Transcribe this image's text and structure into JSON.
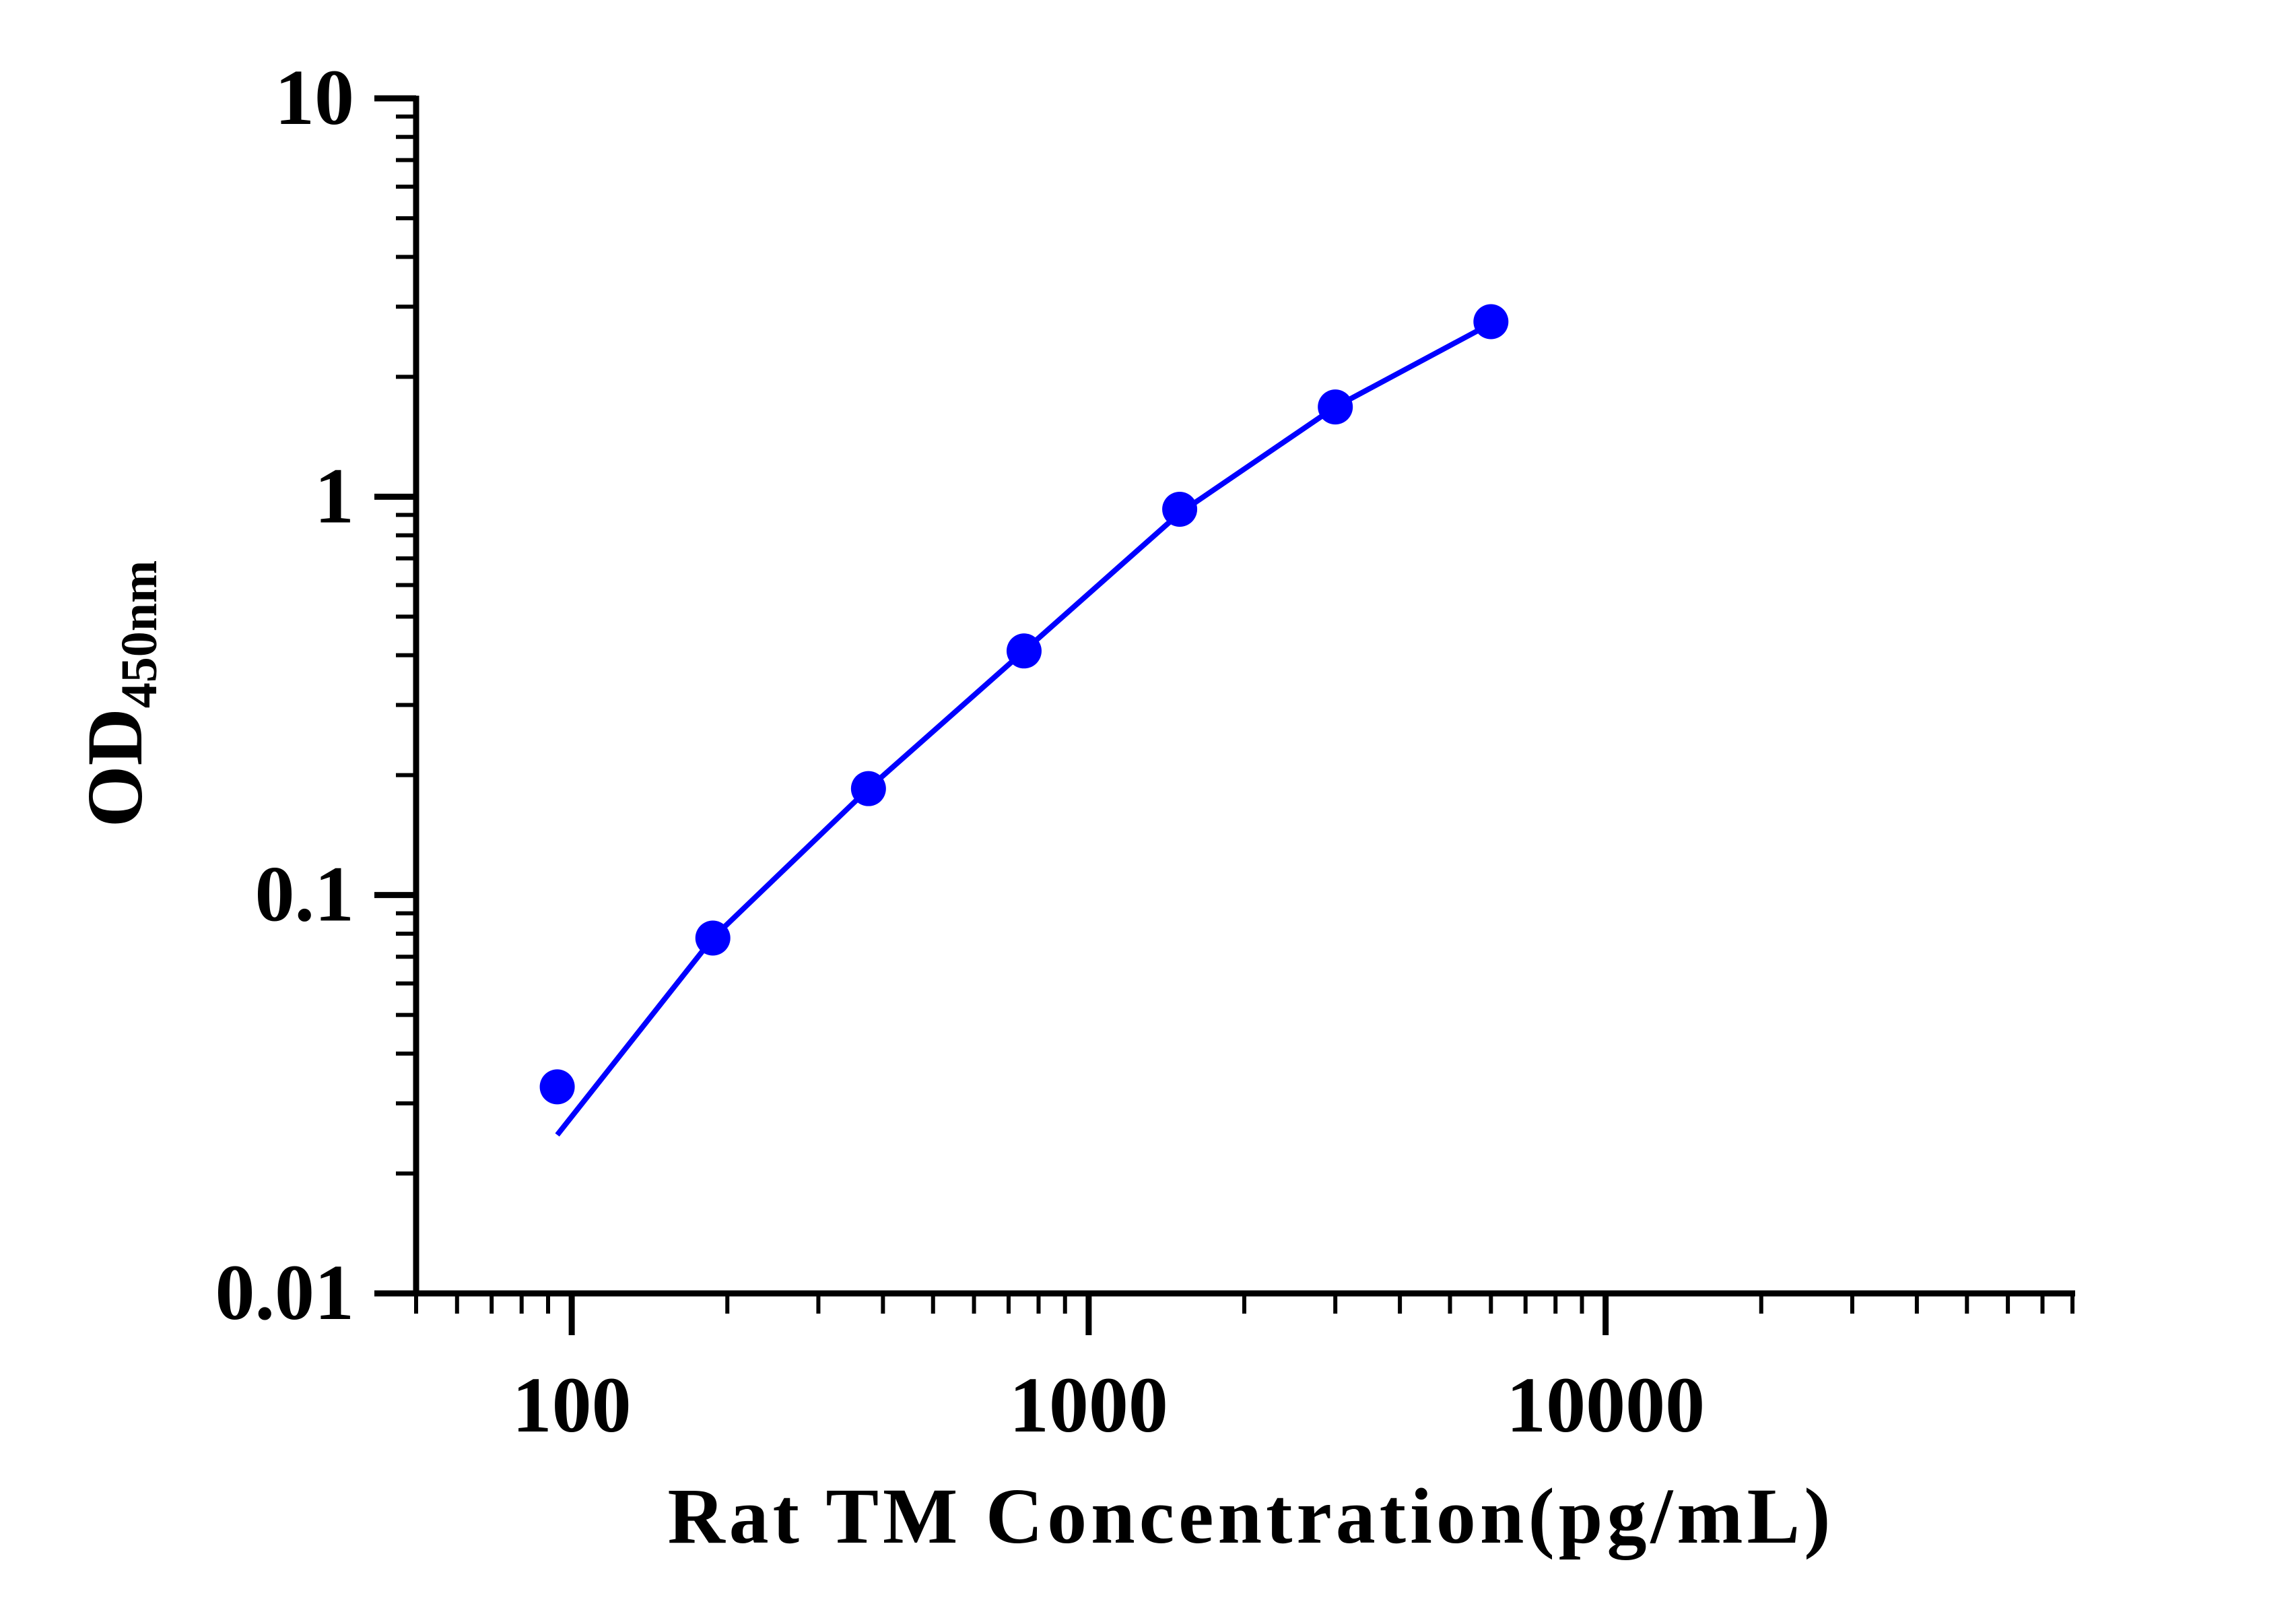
{
  "chart_data": {
    "type": "scatter",
    "xlabel": "Rat TM Concentration(pg/mL)",
    "ylabel": "OD",
    "ylabel_subscript": "450nm",
    "x_scale": "log",
    "y_scale": "log",
    "xlim": [
      50,
      80000
    ],
    "ylim": [
      0.01,
      10
    ],
    "x_tick_labels": [
      {
        "value": 100,
        "label": "100"
      },
      {
        "value": 1000,
        "label": "1000"
      },
      {
        "value": 10000,
        "label": "10000"
      }
    ],
    "y_tick_labels": [
      {
        "value": 10,
        "label": "10"
      },
      {
        "value": 1,
        "label": "1"
      },
      {
        "value": 0.1,
        "label": "0.1"
      },
      {
        "value": 0.01,
        "label": "0.01"
      }
    ],
    "series": [
      {
        "points": [
          {
            "x": 93.75,
            "y": 0.033
          },
          {
            "x": 187.5,
            "y": 0.078
          },
          {
            "x": 375,
            "y": 0.185
          },
          {
            "x": 750,
            "y": 0.41
          },
          {
            "x": 1500,
            "y": 0.93
          },
          {
            "x": 3000,
            "y": 1.68
          },
          {
            "x": 6000,
            "y": 2.75
          }
        ],
        "fit_curve": [
          {
            "x": 93.75,
            "y": 0.025
          },
          {
            "x": 187.5,
            "y": 0.078
          },
          {
            "x": 375,
            "y": 0.185
          },
          {
            "x": 750,
            "y": 0.41
          },
          {
            "x": 1500,
            "y": 0.91
          },
          {
            "x": 3000,
            "y": 1.68
          },
          {
            "x": 6000,
            "y": 2.72
          }
        ]
      }
    ],
    "grid": false,
    "legend": "none",
    "colors": {
      "series": "#0000ff",
      "axis": "#000000"
    }
  }
}
